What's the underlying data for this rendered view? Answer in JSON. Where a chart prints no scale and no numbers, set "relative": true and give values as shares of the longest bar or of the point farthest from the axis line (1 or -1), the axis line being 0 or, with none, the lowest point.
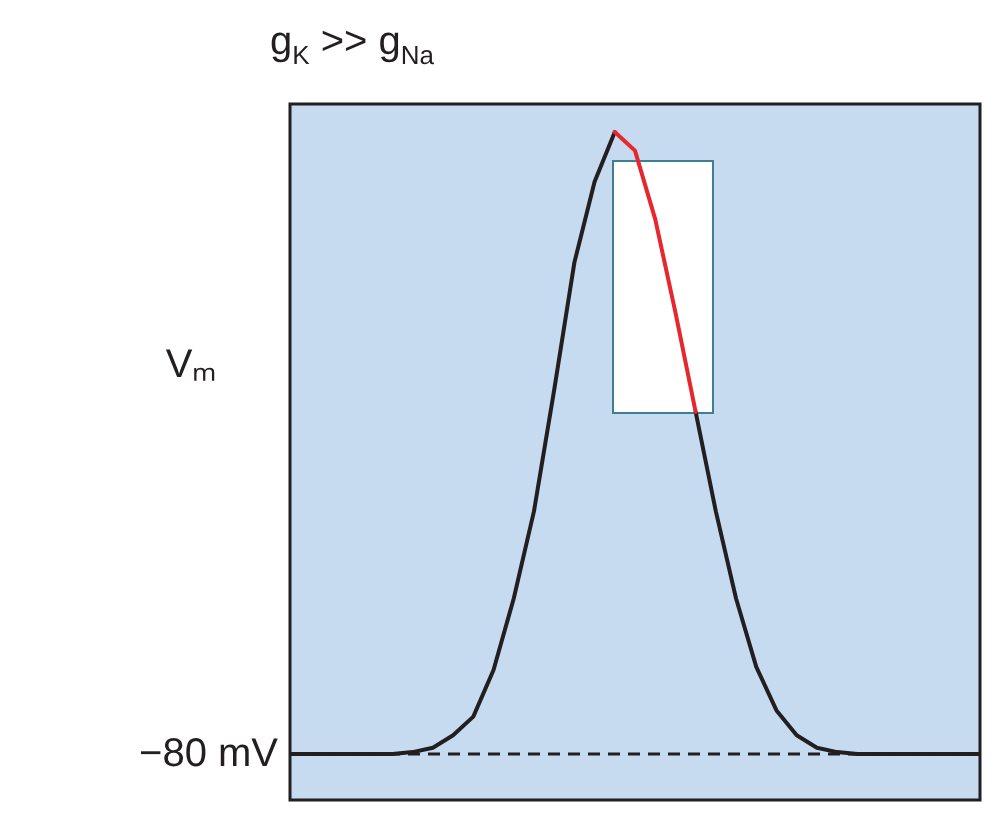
{
  "chart_data": {
    "type": "line",
    "relative": true,
    "title": "g$_{K}$ >> g$_{Na}$",
    "ylabel": "Vₘ",
    "categories": [
      null,
      null,
      null,
      null,
      null,
      null,
      null,
      null,
      null,
      null,
      null,
      null,
      null,
      null,
      null,
      null,
      null,
      null,
      null,
      null,
      null,
      null,
      null,
      null,
      null,
      null,
      null,
      null,
      null,
      null,
      null,
      null,
      null,
      null,
      null
    ],
    "series": [
      {
        "color": "#231f20",
        "values": [
          0,
          0,
          0,
          0,
          0,
          0,
          0.003,
          0.01,
          0.03,
          0.06,
          0.135,
          0.25,
          0.39,
          0.585,
          0.79,
          0.92,
          1,
          null,
          null,
          null,
          0.55,
          0.39,
          0.25,
          0.14,
          0.07,
          0.03,
          0.01,
          0.003,
          0,
          0,
          0,
          0,
          0,
          0,
          0
        ]
      },
      {
        "color": "#e8262d",
        "values": [
          null,
          null,
          null,
          null,
          null,
          null,
          null,
          null,
          null,
          null,
          null,
          null,
          null,
          null,
          null,
          null,
          1,
          0.97,
          0.86,
          0.71,
          0.55,
          null,
          null,
          null,
          null,
          null,
          null,
          null,
          null,
          null,
          null,
          null,
          null,
          null,
          null
        ]
      }
    ],
    "ref_lines": [
      {
        "axis": "y",
        "value": 0,
        "label": "−80 mV",
        "line_style": "dashed",
        "color": "#231f20"
      }
    ]
  }
}
